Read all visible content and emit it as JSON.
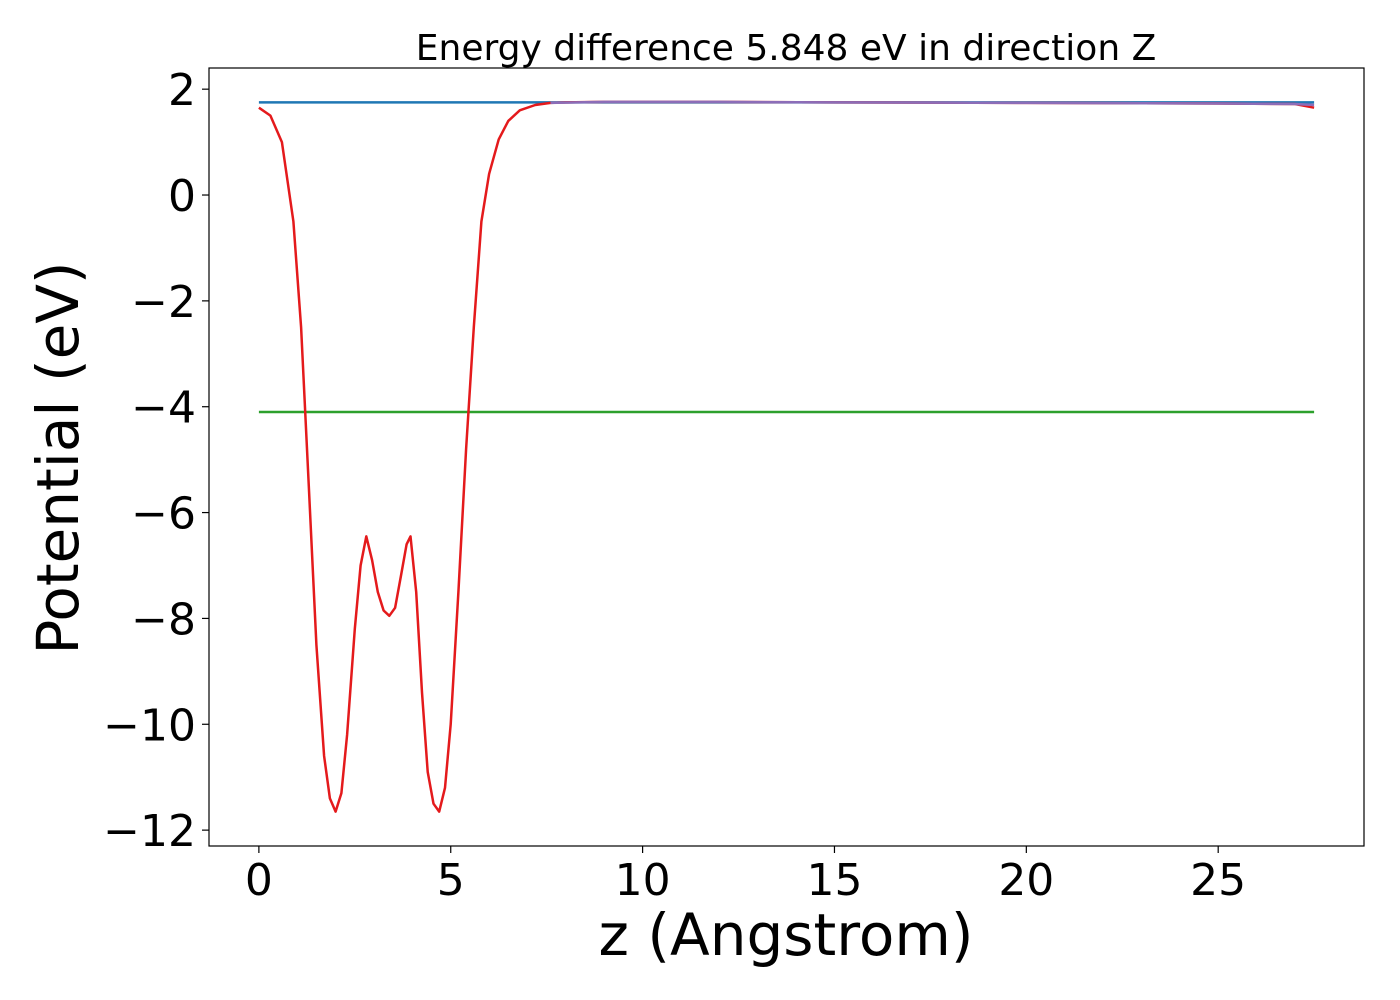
{
  "chart_data": {
    "type": "line",
    "title": "Energy difference 5.848 eV in direction Z",
    "xlabel": "z (Angstrom)",
    "ylabel": "Potential (eV)",
    "xlim": [
      -1.3,
      28.8
    ],
    "ylim": [
      -12.3,
      2.4
    ],
    "xticks": [
      0,
      5,
      10,
      15,
      20,
      25
    ],
    "yticks": [
      2,
      0,
      -2,
      -4,
      -6,
      -8,
      -10,
      -12
    ],
    "xtick_labels": [
      "0",
      "5",
      "10",
      "15",
      "20",
      "25"
    ],
    "ytick_labels": [
      "2",
      "0",
      "−2",
      "−4",
      "−6",
      "−8",
      "−10",
      "−12"
    ],
    "grid": false,
    "series": [
      {
        "color": "#1f77b4",
        "x": [
          0,
          27.5
        ],
        "y": [
          1.75,
          1.75
        ]
      },
      {
        "color": "#2ca02c",
        "x": [
          0,
          27.5
        ],
        "y": [
          -4.1,
          -4.1
        ]
      },
      {
        "color": "#e41a1c",
        "x": [
          0,
          0.3,
          0.6,
          0.9,
          1.1,
          1.3,
          1.5,
          1.7,
          1.85,
          2.0,
          2.15,
          2.3,
          2.5,
          2.65,
          2.8,
          2.95,
          3.1,
          3.25,
          3.4,
          3.55,
          3.7,
          3.85,
          3.95,
          4.1,
          4.25,
          4.4,
          4.55,
          4.7,
          4.85,
          5.0,
          5.2,
          5.4,
          5.6,
          5.8,
          6.0,
          6.25,
          6.5,
          6.8,
          7.2,
          7.6,
          8.0,
          9.0,
          12.0,
          15.0,
          20.0,
          25.0,
          27.0,
          27.5
        ],
        "y": [
          1.65,
          1.5,
          1.0,
          -0.5,
          -2.5,
          -5.5,
          -8.5,
          -10.6,
          -11.4,
          -11.65,
          -11.3,
          -10.2,
          -8.2,
          -7.0,
          -6.45,
          -6.9,
          -7.5,
          -7.85,
          -7.95,
          -7.8,
          -7.2,
          -6.6,
          -6.45,
          -7.5,
          -9.4,
          -10.9,
          -11.5,
          -11.65,
          -11.2,
          -10.0,
          -7.5,
          -4.8,
          -2.5,
          -0.5,
          0.4,
          1.05,
          1.4,
          1.6,
          1.7,
          1.74,
          1.75,
          1.76,
          1.76,
          1.75,
          1.74,
          1.73,
          1.72,
          1.65
        ]
      },
      {
        "color": "#8c6db8",
        "x": [
          7.6,
          9.0,
          12.0,
          15.0,
          20.0,
          25.0,
          27.0,
          27.5
        ],
        "y": [
          1.74,
          1.76,
          1.76,
          1.75,
          1.74,
          1.73,
          1.72,
          1.7
        ]
      }
    ]
  }
}
